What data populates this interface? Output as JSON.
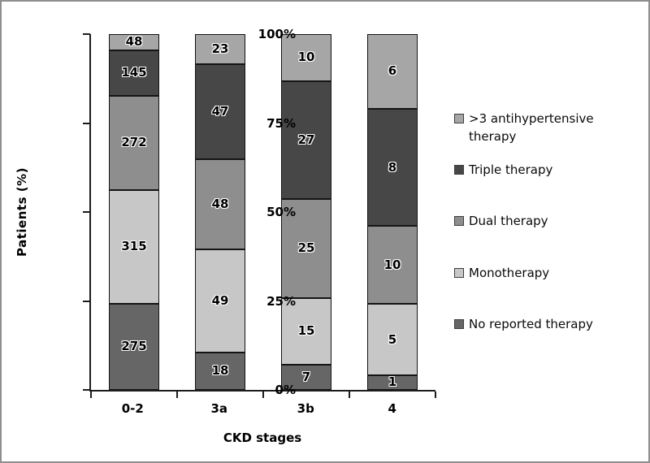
{
  "frame": {
    "border_color": "#8f8f8f",
    "background": "#ffffff"
  },
  "chart_data": {
    "type": "bar",
    "stacked": true,
    "orientation": "vertical",
    "xlabel": "CKD stages",
    "ylabel": "Patients (%)",
    "categories": [
      "0-2",
      "3a",
      "3b",
      "4"
    ],
    "y_ticks": [
      {
        "label": "0%",
        "pct": 0
      },
      {
        "label": "25%",
        "pct": 25
      },
      {
        "label": "50%",
        "pct": 50
      },
      {
        "label": "75%",
        "pct": 75
      },
      {
        "label": "100%",
        "pct": 100
      }
    ],
    "ylim": [
      0,
      100
    ],
    "grid": false,
    "legend_position": "right",
    "series": [
      {
        "name": "No reported therapy",
        "color": "#666666",
        "values": [
          275,
          18,
          7,
          1
        ],
        "heights_pct": [
          24.2,
          10.5,
          7.1,
          4.1
        ]
      },
      {
        "name": "Monotherapy",
        "color": "#c7c7c7",
        "values": [
          315,
          49,
          15,
          5
        ],
        "heights_pct": [
          32.0,
          29.0,
          18.7,
          20.1
        ]
      },
      {
        "name": "Dual therapy",
        "color": "#8e8e8e",
        "values": [
          272,
          48,
          25,
          10
        ],
        "heights_pct": [
          26.5,
          25.3,
          27.9,
          21.9
        ]
      },
      {
        "name": "Triple therapy",
        "color": "#474747",
        "values": [
          145,
          47,
          27,
          8
        ],
        "heights_pct": [
          12.8,
          26.7,
          33.1,
          32.9
        ]
      },
      {
        "name": ">3 antihypertensive therapy",
        "color": "#a6a6a6",
        "values": [
          48,
          23,
          10,
          6
        ],
        "heights_pct": [
          4.5,
          8.5,
          13.2,
          21.0
        ]
      }
    ],
    "legend_order_top_to_bottom": [
      ">3 antihypertensive therapy",
      "Triple therapy",
      "Dual therapy",
      "Monotherapy",
      "No reported therapy"
    ]
  }
}
